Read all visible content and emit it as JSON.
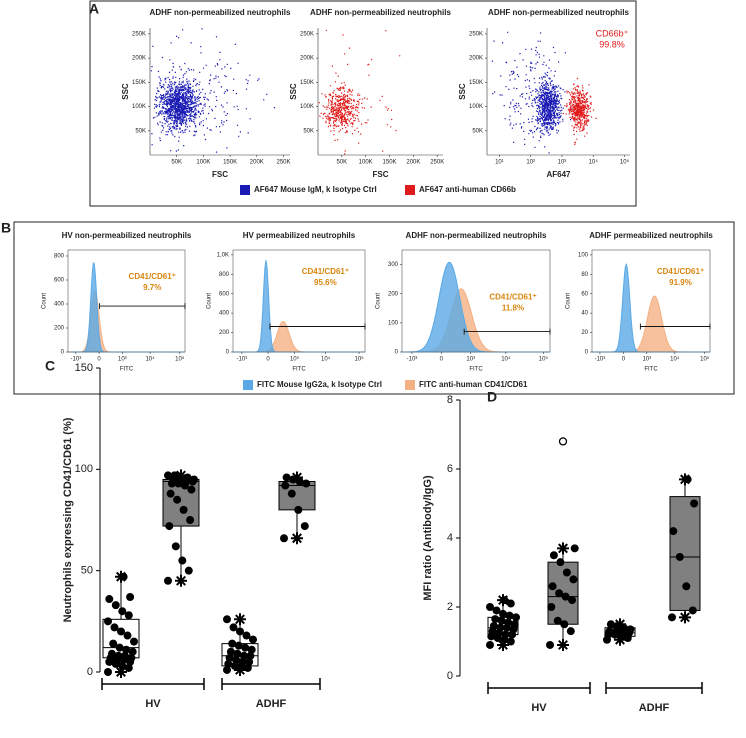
{
  "panel_labels": [
    "A",
    "B",
    "C",
    "D"
  ],
  "legends": {
    "A": [
      {
        "name": "AF647 Mouse IgM, k Isotype Ctrl",
        "color": "#1a1ab5"
      },
      {
        "name": "AF647 anti-human CD66b",
        "color": "#e01b1b"
      }
    ],
    "B": [
      {
        "name": "FITC Mouse IgG2a, k Isotype Ctrl",
        "color": "#5aa9e6"
      },
      {
        "name": "FITC anti-human CD41/CD61",
        "color": "#f4b183"
      }
    ]
  },
  "chart_data": [
    {
      "type": "flow-scatter",
      "title": "ADHF non-permeabilized neutrophils",
      "xlabel": "FSC",
      "ylabel": "SSC",
      "xlim": [
        0,
        262144
      ],
      "xticks": [
        {
          "value": 50000,
          "label": "50K"
        },
        {
          "value": 100000,
          "label": "100K"
        },
        {
          "value": 150000,
          "label": "150K"
        },
        {
          "value": 200000,
          "label": "200K"
        },
        {
          "value": 250000,
          "label": "250K"
        }
      ],
      "ylim": [
        0,
        262144
      ],
      "yticks": [
        {
          "value": 50000,
          "label": "50K"
        },
        {
          "value": 100000,
          "label": "100K"
        },
        {
          "value": 150000,
          "label": "150K"
        },
        {
          "value": 200000,
          "label": "200K"
        },
        {
          "value": 250000,
          "label": "250K"
        }
      ]
    },
    {
      "type": "flow-scatter",
      "title": "ADHF non-permeabilized neutrophils",
      "xlabel": "FSC",
      "ylabel": "SSC",
      "xlim": [
        0,
        262144
      ],
      "xticks": [
        {
          "value": 50000,
          "label": "50K"
        },
        {
          "value": 100000,
          "label": "100K"
        },
        {
          "value": 150000,
          "label": "150K"
        },
        {
          "value": 200000,
          "label": "200K"
        },
        {
          "value": 250000,
          "label": "250K"
        }
      ],
      "ylim": [
        0,
        262144
      ],
      "yticks": [
        {
          "value": 50000,
          "label": "50K"
        },
        {
          "value": 100000,
          "label": "100K"
        },
        {
          "value": 150000,
          "label": "150K"
        },
        {
          "value": 200000,
          "label": "200K"
        },
        {
          "value": 250000,
          "label": "250K"
        }
      ]
    },
    {
      "type": "flow-scatter",
      "title": "ADHF non-permeabilized neutrophils",
      "xlabel": "AF647",
      "ylabel": "SSC",
      "xscale": "log",
      "xlim": [
        4,
        150000
      ],
      "xticks": [
        {
          "value": 10,
          "label": "10¹"
        },
        {
          "value": 100,
          "label": "10²"
        },
        {
          "value": 1000,
          "label": "10³"
        },
        {
          "value": 10000,
          "label": "10⁴"
        },
        {
          "value": 100000,
          "label": "10⁵"
        }
      ],
      "ylim": [
        0,
        262144
      ],
      "yticks": [
        {
          "value": 50000,
          "label": "50K"
        },
        {
          "value": 100000,
          "label": "100K"
        },
        {
          "value": 150000,
          "label": "150K"
        },
        {
          "value": 200000,
          "label": "200K"
        },
        {
          "value": 250000,
          "label": "250K"
        }
      ],
      "annotation": [
        "CD66b⁺",
        "99.8%"
      ],
      "annotation_color": "#e01b1b"
    },
    {
      "type": "flow-histogram",
      "title": "HV non-permeabilized neutrophils",
      "xlabel": "FITC",
      "ylabel": "Count",
      "xlim": [
        -2000,
        150000
      ],
      "xticks": [
        {
          "value": -1000,
          "label": "-10³"
        },
        0,
        {
          "value": 1000,
          "label": "10³"
        },
        {
          "value": 10000,
          "label": "10⁴"
        },
        {
          "value": 100000,
          "label": "10⁵"
        }
      ],
      "ylim": [
        0,
        850
      ],
      "yticks": [
        0,
        200,
        400,
        600,
        800
      ],
      "annotation": [
        "CD41/CD61⁺",
        "9.7%"
      ],
      "annotation_color": "#d9860f"
    },
    {
      "type": "flow-histogram",
      "title": "HV permeabilized neutrophils",
      "xlabel": "FITC",
      "ylabel": "Count",
      "xlim": [
        -2000,
        150000
      ],
      "xticks": [
        {
          "value": -1000,
          "label": "-10³"
        },
        0,
        {
          "value": 1000,
          "label": "10³"
        },
        {
          "value": 10000,
          "label": "10⁴"
        },
        {
          "value": 100000,
          "label": "10⁵"
        }
      ],
      "ylim": [
        0,
        1050
      ],
      "yticks": [
        0,
        200,
        400,
        600,
        800,
        {
          "value": 1000,
          "label": "1,0K"
        }
      ],
      "annotation": [
        "CD41/CD61⁺",
        "95.6%"
      ],
      "annotation_color": "#d9860f"
    },
    {
      "type": "flow-histogram",
      "title": "ADHF non-permeabilized neutrophils",
      "xlabel": "FITC",
      "ylabel": "Count",
      "xlim": [
        -2000,
        150000
      ],
      "xticks": [
        {
          "value": -1000,
          "label": "-10³"
        },
        0,
        {
          "value": 1000,
          "label": "10³"
        },
        {
          "value": 10000,
          "label": "10⁴"
        },
        {
          "value": 100000,
          "label": "10⁵"
        }
      ],
      "ylim": [
        0,
        350
      ],
      "yticks": [
        0,
        100,
        200,
        300
      ],
      "annotation": [
        "CD41/CD61⁺",
        "11.8%"
      ],
      "annotation_color": "#d9860f"
    },
    {
      "type": "flow-histogram",
      "title": "ADHF permeabilized neutrophils",
      "xlabel": "FITC",
      "ylabel": "Count",
      "xlim": [
        -2000,
        150000
      ],
      "xticks": [
        {
          "value": -1000,
          "label": "-10³"
        },
        0,
        {
          "value": 1000,
          "label": "10³"
        },
        {
          "value": 10000,
          "label": "10⁴"
        },
        {
          "value": 100000,
          "label": "10⁵"
        }
      ],
      "ylim": [
        0,
        105
      ],
      "yticks": [
        0,
        20,
        40,
        60,
        80,
        100
      ],
      "annotation": [
        "CD41/CD61⁺",
        "91.9%"
      ],
      "annotation_color": "#d9860f"
    },
    {
      "type": "box",
      "ylabel": "Neutrophils expressing CD41/CD61 (%)",
      "ylim": [
        0,
        150
      ],
      "yticks": [
        0,
        50,
        100,
        150
      ],
      "groups": [
        {
          "label": "HV",
          "boxes": [
            {
              "color": "#ffffff",
              "min": 0,
              "q1": 7,
              "median": 12,
              "q3": 26,
              "max": 47,
              "points": [
                0,
                2,
                3,
                4,
                5,
                5,
                6,
                6,
                7,
                7,
                8,
                8,
                9,
                10,
                11,
                12,
                14,
                15,
                18,
                20,
                22,
                25,
                28,
                30,
                33,
                36,
                37,
                47
              ]
            },
            {
              "color": "#808080",
              "min": 45,
              "q1": 72,
              "median": 94,
              "q3": 95,
              "max": 97,
              "points": [
                45,
                50,
                55,
                62,
                72,
                75,
                80,
                85,
                88,
                90,
                92,
                93,
                93,
                94,
                94,
                95,
                95,
                95,
                96,
                96,
                97,
                97
              ]
            }
          ]
        },
        {
          "label": "ADHF",
          "boxes": [
            {
              "color": "#ffffff",
              "min": 1,
              "q1": 3,
              "median": 8,
              "q3": 14,
              "max": 26,
              "points": [
                1,
                2,
                3,
                3,
                4,
                5,
                5,
                6,
                7,
                8,
                8,
                9,
                10,
                11,
                12,
                13,
                14,
                16,
                18,
                20,
                22,
                26
              ]
            },
            {
              "color": "#808080",
              "min": 66,
              "q1": 80,
              "median": 92,
              "q3": 94,
              "max": 96,
              "points": [
                66,
                72,
                80,
                88,
                92,
                93,
                94,
                95,
                96
              ]
            }
          ]
        }
      ]
    },
    {
      "type": "box",
      "ylabel": "MFI ratio (Antibody/IgG)",
      "ylim": [
        0,
        8
      ],
      "yticks": [
        0,
        2,
        4,
        6,
        8
      ],
      "groups": [
        {
          "label": "HV",
          "boxes": [
            {
              "color": "#ffffff",
              "min": 0.9,
              "q1": 1.2,
              "median": 1.4,
              "q3": 1.7,
              "max": 2.2,
              "points": [
                0.9,
                1.0,
                1.05,
                1.1,
                1.15,
                1.2,
                1.2,
                1.25,
                1.3,
                1.35,
                1.4,
                1.4,
                1.45,
                1.5,
                1.55,
                1.6,
                1.65,
                1.7,
                1.75,
                1.8,
                1.9,
                2.0,
                2.1,
                2.2
              ]
            },
            {
              "color": "#808080",
              "min": 0.9,
              "q1": 1.5,
              "median": 2.3,
              "q3": 3.3,
              "max": 3.7,
              "points": [
                0.9,
                1.3,
                1.5,
                1.6,
                2.0,
                2.2,
                2.3,
                2.4,
                2.6,
                2.8,
                3.0,
                3.3,
                3.5,
                3.7
              ],
              "outliers": [
                6.8
              ]
            }
          ]
        },
        {
          "label": "ADHF",
          "boxes": [
            {
              "color": "#ffffff",
              "min": 1.05,
              "q1": 1.15,
              "median": 1.25,
              "q3": 1.4,
              "max": 1.5,
              "points": [
                1.05,
                1.1,
                1.15,
                1.2,
                1.2,
                1.25,
                1.25,
                1.3,
                1.3,
                1.35,
                1.4,
                1.45,
                1.5
              ]
            },
            {
              "color": "#808080",
              "min": 1.7,
              "q1": 1.9,
              "median": 3.45,
              "q3": 5.2,
              "max": 5.7,
              "points": [
                1.7,
                1.9,
                2.6,
                3.45,
                4.2,
                5.0,
                5.7
              ]
            }
          ]
        }
      ]
    }
  ]
}
